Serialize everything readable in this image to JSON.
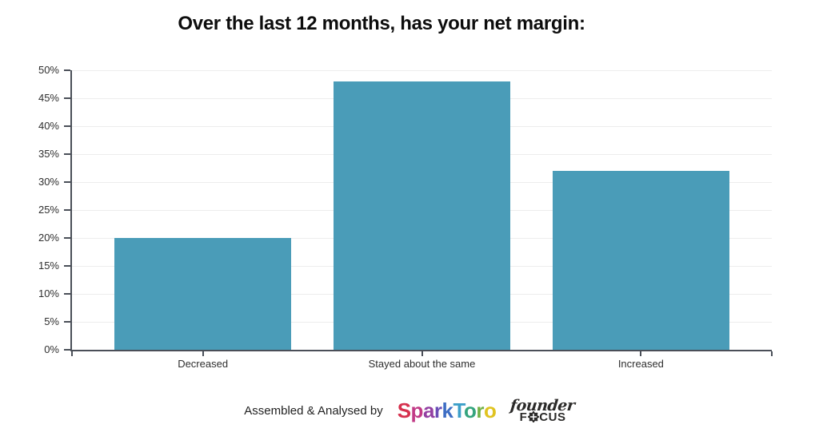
{
  "title": "Over the last 12 months, has your net margin:",
  "chart_data": {
    "type": "bar",
    "title": "Over the last 12 months, has your net margin:",
    "categories": [
      "Decreased",
      "Stayed about the same",
      "Increased"
    ],
    "values": [
      20,
      48,
      32
    ],
    "value_format": "percent",
    "xlabel": "",
    "ylabel": "",
    "ylim": [
      0,
      50
    ],
    "ytick_step": 5,
    "ytick_labels": [
      "0%",
      "5%",
      "10%",
      "15%",
      "20%",
      "25%",
      "30%",
      "35%",
      "40%",
      "45%",
      "50%"
    ],
    "grid": true,
    "legend": "none",
    "bar_color": "#4a9cb8",
    "axis_color": "#4a4f58",
    "grid_color": "#ededed",
    "tick_label_color": "#2e2e2e"
  },
  "footer": {
    "attribution_text": "Assembled & Analysed by",
    "sparktoro_logo": {
      "name": "SparkToro",
      "letters": [
        {
          "char": "S",
          "color": "#d6314e"
        },
        {
          "char": "p",
          "color": "#c13a86"
        },
        {
          "char": "a",
          "color": "#9340a2"
        },
        {
          "char": "r",
          "color": "#6a4db6"
        },
        {
          "char": "k",
          "color": "#3e6ec4"
        },
        {
          "char": "T",
          "color": "#3c9fc9"
        },
        {
          "char": "o",
          "color": "#35a47e"
        },
        {
          "char": "r",
          "color": "#71b146"
        },
        {
          "char": "o",
          "color": "#e0c321"
        }
      ]
    },
    "founderfocus_logo": {
      "line1": "founder",
      "line2_prefix": "F",
      "line2_suffix": "CUS",
      "color": "#2b2a29"
    }
  }
}
